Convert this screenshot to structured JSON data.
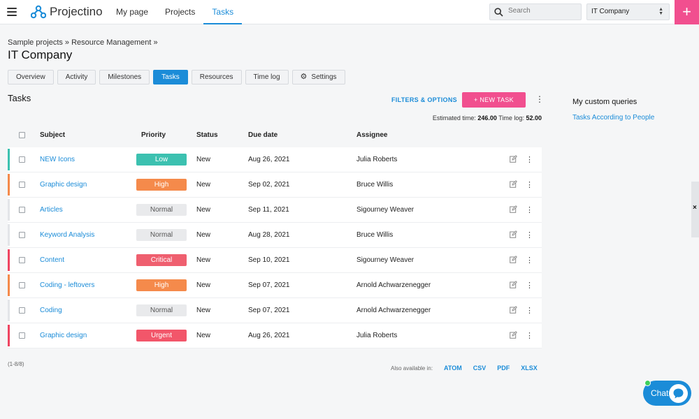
{
  "app": {
    "name": "Projectino"
  },
  "nav": {
    "items": [
      "My page",
      "Projects",
      "Tasks"
    ],
    "active": "Tasks"
  },
  "search": {
    "placeholder": "Search"
  },
  "company_select": {
    "value": "IT Company"
  },
  "add_button": {
    "label": "+"
  },
  "breadcrumb": "Sample projects » Resource Management »",
  "page_title": "IT Company",
  "tabs": [
    "Overview",
    "Activity",
    "Milestones",
    "Tasks",
    "Resources",
    "Time log",
    "Settings"
  ],
  "active_tab": "Tasks",
  "section_title": "Tasks",
  "toolbar": {
    "filters_label": "FILTERS & OPTIONS",
    "new_task_label": "+ NEW TASK",
    "more": "⋮"
  },
  "estimates": {
    "estimated_label": "Estimated time:",
    "estimated_value": "246.00",
    "timelog_label": "Time log:",
    "timelog_value": "52.00"
  },
  "table": {
    "headers": {
      "subject": "Subject",
      "priority": "Priority",
      "status": "Status",
      "due": "Due date",
      "assignee": "Assignee"
    },
    "rows": [
      {
        "subject": "NEW Icons",
        "priority": "Low",
        "status": "New",
        "due": "Aug 26, 2021",
        "assignee": "Julia Roberts",
        "color": "#3cc1b0"
      },
      {
        "subject": "Graphic design",
        "priority": "High",
        "status": "New",
        "due": "Sep 02, 2021",
        "assignee": "Bruce Willis",
        "color": "#f58a4b"
      },
      {
        "subject": "Articles",
        "priority": "Normal",
        "status": "New",
        "due": "Sep 11, 2021",
        "assignee": "Sigourney Weaver",
        "color": "#e3e5e8"
      },
      {
        "subject": "Keyword Analysis",
        "priority": "Normal",
        "status": "New",
        "due": "Aug 28, 2021",
        "assignee": "Bruce Willis",
        "color": "#e3e5e8"
      },
      {
        "subject": "Content",
        "priority": "Critical",
        "status": "New",
        "due": "Sep 10, 2021",
        "assignee": "Sigourney Weaver",
        "color": "#ef4561"
      },
      {
        "subject": "Coding - leftovers",
        "priority": "High",
        "status": "New",
        "due": "Sep 07, 2021",
        "assignee": "Arnold Achwarzenegger",
        "color": "#f58a4b"
      },
      {
        "subject": "Coding",
        "priority": "Normal",
        "status": "New",
        "due": "Sep 07, 2021",
        "assignee": "Arnold Achwarzenegger",
        "color": "#e3e5e8"
      },
      {
        "subject": "Graphic design",
        "priority": "Urgent",
        "status": "New",
        "due": "Aug 26, 2021",
        "assignee": "Julia Roberts",
        "color": "#ef4561"
      }
    ]
  },
  "pagination": "(1-8/8)",
  "exports": {
    "label": "Also available in:",
    "formats": [
      "ATOM",
      "CSV",
      "PDF",
      "XLSX"
    ]
  },
  "custom_queries": {
    "title": "My custom queries",
    "link": "Tasks According to People"
  },
  "side_tab": {
    "label": "×"
  },
  "chat": {
    "label": "Chat"
  }
}
